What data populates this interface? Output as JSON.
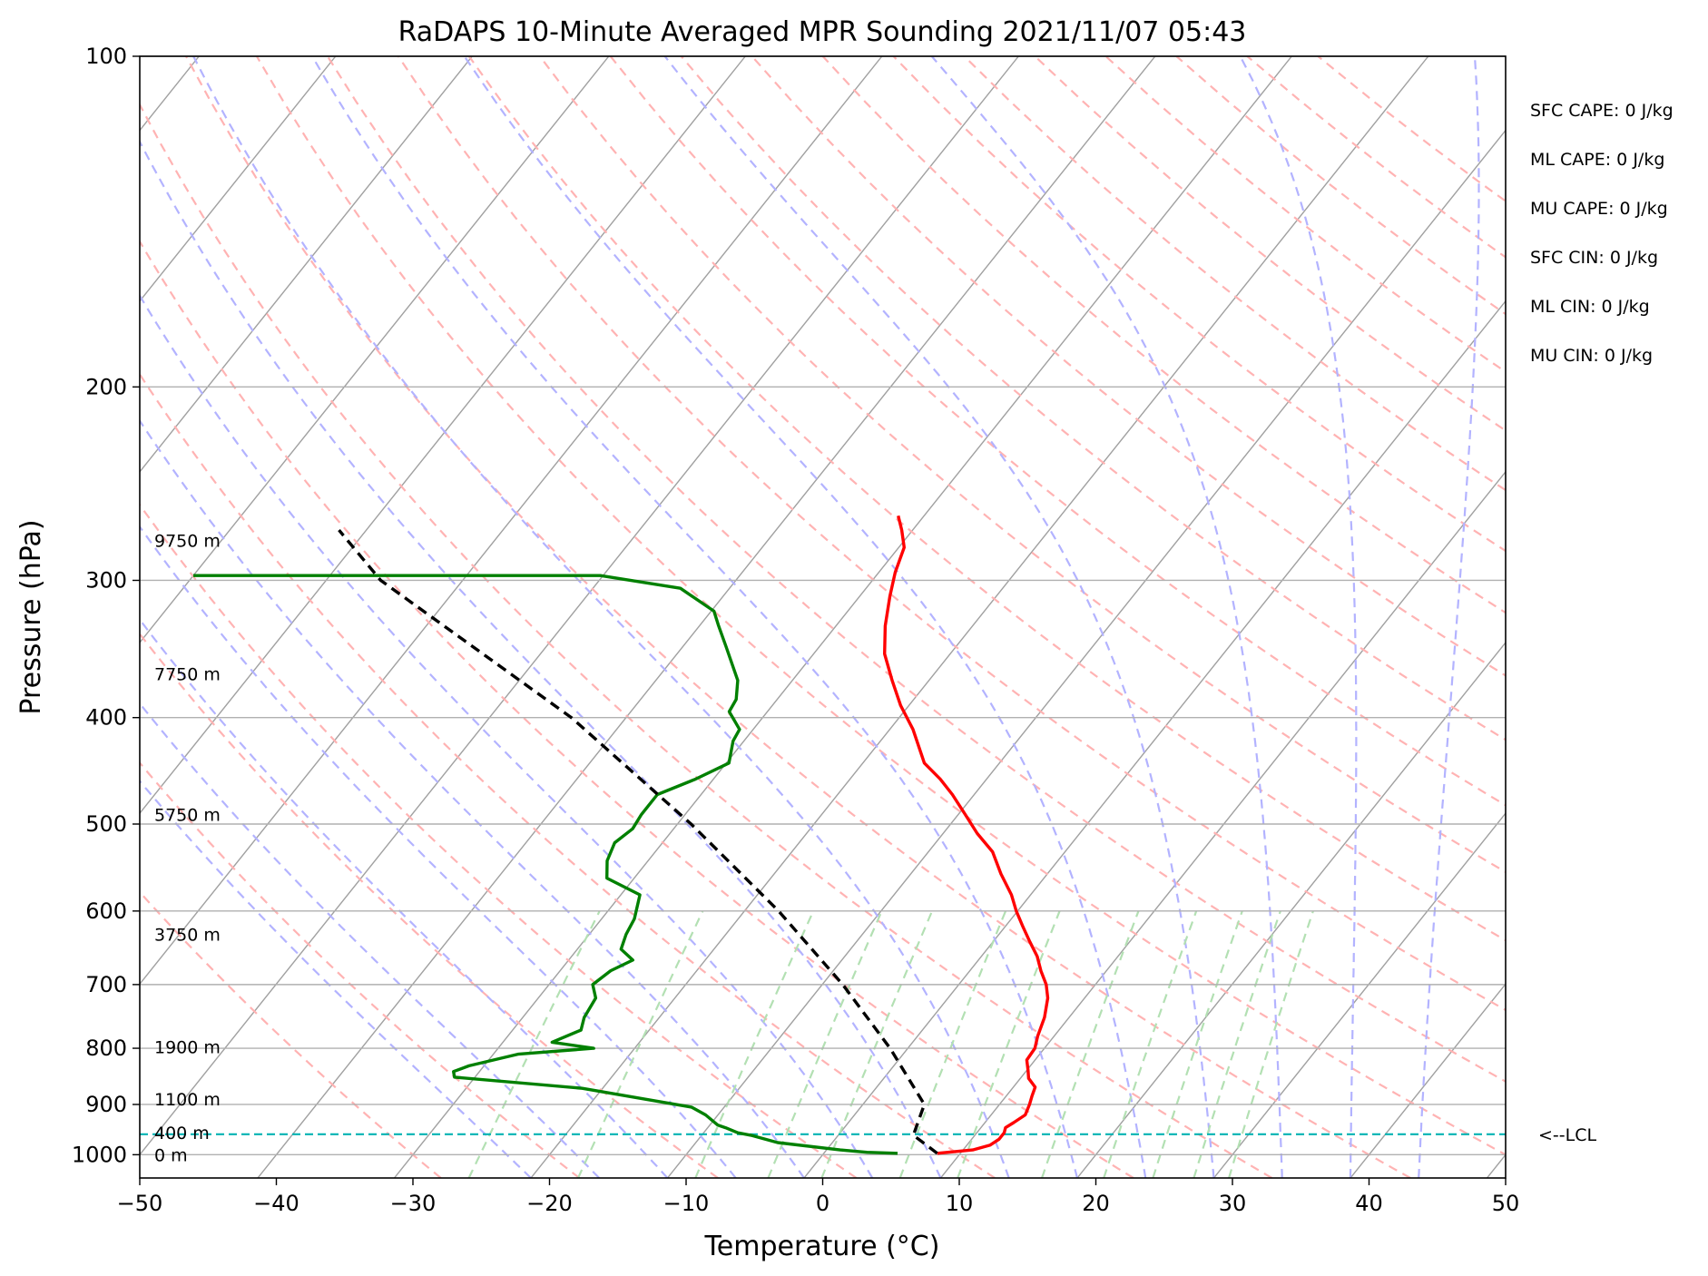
{
  "chart_data": {
    "type": "line",
    "title": "RaDAPS 10-Minute Averaged MPR Sounding 2021/11/07 05:43",
    "xlabel": "Temperature (°C)",
    "ylabel": "Pressure (hPa)",
    "xlim": [
      -50,
      50
    ],
    "ylim": [
      1050,
      100
    ],
    "y_scale": "log",
    "skew": "skew-T log-p",
    "grid": true,
    "x_ticks": [
      -50,
      -40,
      -30,
      -20,
      -10,
      0,
      10,
      20,
      30,
      40,
      50
    ],
    "x_tick_labels": [
      "−50",
      "−40",
      "−30",
      "−20",
      "−10",
      "0",
      "10",
      "20",
      "30",
      "40",
      "50"
    ],
    "y_ticks": [
      1000,
      900,
      800,
      700,
      600,
      500,
      400,
      300,
      200,
      100
    ],
    "y_tick_labels": [
      "1000",
      "900",
      "800",
      "700",
      "600",
      "500",
      "400",
      "300",
      "200",
      "100"
    ],
    "series": [
      {
        "color": "#ff0000",
        "style": "solid",
        "pressure": [
          997,
          990,
          980,
          968,
          955,
          945,
          935,
          920,
          900,
          885,
          868,
          852,
          838,
          820,
          800,
          780,
          750,
          720,
          700,
          680,
          660,
          640,
          620,
          600,
          580,
          555,
          530,
          510,
          490,
          470,
          455,
          440,
          410,
          390,
          370,
          350,
          330,
          310,
          295,
          280,
          270,
          262
        ],
        "temperature": [
          8.3,
          10.7,
          11.7,
          12.0,
          12.0,
          11.8,
          12.1,
          12.5,
          12.2,
          11.9,
          11.6,
          10.6,
          10.1,
          9.4,
          9.3,
          8.8,
          8.2,
          7.3,
          6.4,
          5.2,
          4.1,
          2.7,
          1.3,
          -0.1,
          -1.4,
          -3.4,
          -5.3,
          -7.5,
          -9.5,
          -11.6,
          -13.4,
          -15.5,
          -18.3,
          -20.6,
          -22.7,
          -24.8,
          -26.4,
          -27.8,
          -28.8,
          -29.6,
          -30.8,
          -31.9
        ]
      },
      {
        "color": "#008000",
        "style": "solid",
        "pressure": [
          997,
          995,
          990,
          975,
          960,
          955,
          945,
          940,
          920,
          905,
          870,
          850,
          840,
          830,
          810,
          800,
          790,
          770,
          750,
          720,
          700,
          680,
          665,
          650,
          630,
          610,
          580,
          560,
          540,
          520,
          505,
          490,
          470,
          455,
          440,
          420,
          410,
          395,
          385,
          370,
          345,
          330,
          320,
          305,
          297,
          297
        ],
        "temperature": [
          5.4,
          3.1,
          1.0,
          -4.0,
          -6.4,
          -7.5,
          -8.7,
          -9.4,
          -10.9,
          -12.4,
          -21.5,
          -31.5,
          -31.9,
          -31.1,
          -28.2,
          -23.0,
          -26.4,
          -25.0,
          -25.5,
          -25.8,
          -26.8,
          -26.3,
          -25.3,
          -26.8,
          -27.3,
          -27.6,
          -28.6,
          -32.0,
          -33.0,
          -33.5,
          -33.0,
          -33.2,
          -33.2,
          -31.3,
          -29.8,
          -30.8,
          -31.0,
          -32.8,
          -33.0,
          -34.0,
          -36.8,
          -38.6,
          -39.8,
          -43.6,
          -50.2,
          -80.0
        ]
      },
      {
        "color": "#000000",
        "style": "dashed",
        "pressure": [
          997,
          960,
          900,
          800,
          700,
          600,
          500,
          400,
          300,
          270
        ],
        "temperature": [
          8.3,
          5.5,
          4.5,
          -1.3,
          -8.5,
          -17.5,
          -29.0,
          -44.0,
          -66.0,
          -72.0
        ]
      }
    ],
    "lcl": {
      "pressure": 958,
      "label": "<--LCL"
    },
    "height_labels": [
      {
        "pressure": 1000,
        "label": "0 m"
      },
      {
        "pressure": 955,
        "label": "400 m"
      },
      {
        "pressure": 890,
        "label": "1100 m"
      },
      {
        "pressure": 798,
        "label": "1900 m"
      },
      {
        "pressure": 630,
        "label": "3750 m"
      },
      {
        "pressure": 490,
        "label": "5750 m"
      },
      {
        "pressure": 365,
        "label": "7750 m"
      },
      {
        "pressure": 276,
        "label": "9750 m"
      }
    ],
    "annotations": [
      "SFC CAPE: 0 J/kg",
      "ML CAPE: 0 J/kg",
      "MU CAPE: 0 J/kg",
      "SFC CIN: 0 J/kg",
      "ML CIN: 0 J/kg",
      "MU CIN: 0 J/kg"
    ],
    "background_line_colors": {
      "isotherms": "#a0a0a0",
      "dry_adiabats": "#ffb3b3",
      "moist_adiabats": "#b3b3ff",
      "mixing_ratio": "#b3e0b3",
      "lcl_line": "#00b3b3"
    }
  }
}
